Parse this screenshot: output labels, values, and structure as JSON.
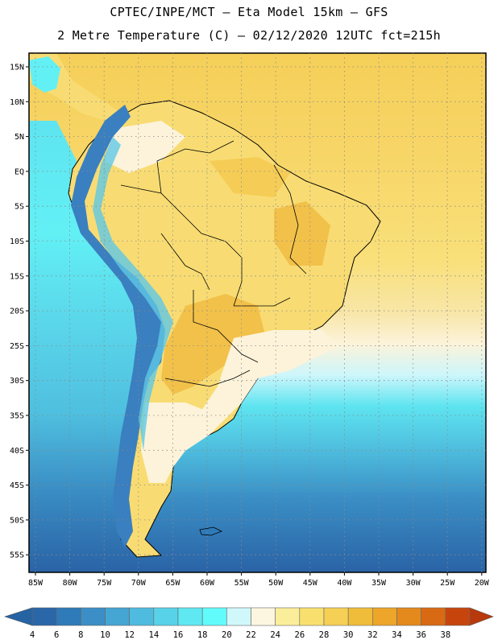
{
  "header": {
    "line1": "CPTEC/INPE/MCT –  Eta Model 15km – GFS",
    "line2": "2 Metre Temperature (C) – 02/12/2020 12UTC fct=215h"
  },
  "map": {
    "lat_labels": [
      "15N",
      "10N",
      "5N",
      "EQ",
      "5S",
      "10S",
      "15S",
      "20S",
      "25S",
      "30S",
      "35S",
      "40S",
      "45S",
      "50S",
      "55S"
    ],
    "lon_labels": [
      "85W",
      "80W",
      "75W",
      "70W",
      "65W",
      "60W",
      "55W",
      "50W",
      "45W",
      "40W",
      "35W",
      "30W",
      "25W",
      "20W"
    ]
  },
  "colorbar": {
    "labels": [
      "4",
      "6",
      "8",
      "10",
      "12",
      "14",
      "16",
      "18",
      "20",
      "22",
      "24",
      "26",
      "28",
      "30",
      "32",
      "34",
      "36",
      "38"
    ],
    "colors": [
      "#2a67a8",
      "#2f7ab8",
      "#3b8fc6",
      "#45a5d3",
      "#4fbbde",
      "#58d2e8",
      "#5fe8f2",
      "#62fbfb",
      "#d0f8fb",
      "#fcf6e0",
      "#fbee9a",
      "#f9e06e",
      "#f5d055",
      "#f0bd3b",
      "#eda62a",
      "#e48a1d",
      "#d96a14",
      "#c7450d"
    ],
    "left_arrow_color": "#2563a3",
    "right_arrow_color": "#b8390b"
  },
  "palette": {
    "sea_cold": "#2a63a6",
    "sea_cool": "#3a8dc4",
    "sea_mid": "#4fbfdf",
    "sea_cyan": "#5ee4f0",
    "sea_light": "#cdf6fb",
    "warm_sea": "#f5cf58",
    "land_hot": "#f2c14a",
    "land_warm": "#f8dc73",
    "land_cream": "#fcf3da",
    "andes": "#3a7fbf"
  }
}
